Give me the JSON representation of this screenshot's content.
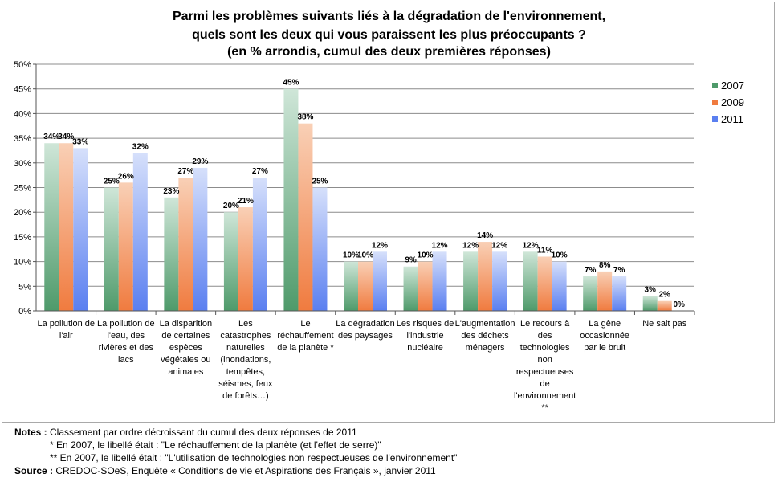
{
  "chart_data": {
    "type": "bar",
    "title": [
      "Parmi les problèmes suivants liés à la dégradation de l'environnement,",
      "quels sont les deux qui vous paraissent les plus préoccupants ?",
      "(en % arrondis, cumul des deux premières réponses)"
    ],
    "ylim": [
      0,
      50
    ],
    "yticks": [
      "0%",
      "5%",
      "10%",
      "15%",
      "20%",
      "25%",
      "30%",
      "35%",
      "40%",
      "45%",
      "50%"
    ],
    "grid": true,
    "legend_position": "right",
    "categories": [
      [
        "La pollution de",
        "l'air"
      ],
      [
        "La pollution de",
        "l'eau, des",
        "rivières et des",
        "lacs"
      ],
      [
        "La disparition",
        "de certaines",
        "espèces",
        "végétales ou",
        "animales"
      ],
      [
        "Les",
        "catastrophes",
        "naturelles",
        "(inondations,",
        "tempêtes,",
        "séismes, feux",
        "de forêts…)"
      ],
      [
        "Le",
        "réchauffement",
        "de la planète *"
      ],
      [
        "La dégradation",
        "des paysages"
      ],
      [
        "Les risques de",
        "l'industrie",
        "nucléaire"
      ],
      [
        "L'augmentation",
        "des déchets",
        "ménagers"
      ],
      [
        "Le recours à",
        "des",
        "technologies",
        "non",
        "respectueuses",
        "de",
        "l'environnement",
        "**"
      ],
      [
        "La gêne",
        "occasionnée",
        "par le bruit"
      ],
      [
        "Ne sait pas"
      ]
    ],
    "series": [
      {
        "name": "2007",
        "color": "#4e9a6a",
        "values": [
          34,
          25,
          23,
          20,
          45,
          10,
          9,
          12,
          12,
          7,
          3
        ]
      },
      {
        "name": "2009",
        "color": "#f07b3f",
        "values": [
          34,
          26,
          27,
          21,
          38,
          10,
          10,
          14,
          11,
          8,
          2
        ]
      },
      {
        "name": "2011",
        "color": "#5a7ff0",
        "values": [
          33,
          32,
          29,
          27,
          25,
          12,
          12,
          12,
          10,
          7,
          0
        ]
      }
    ],
    "data_labels": [
      [
        "34%",
        "25%",
        "23%",
        "20%",
        "45%",
        "10%",
        "9%",
        "12%",
        "12%",
        "7%",
        "3%"
      ],
      [
        "34%",
        "26%",
        "27%",
        "21%",
        "38%",
        "10%",
        "10%",
        "14%",
        "11%",
        "8%",
        "2%"
      ],
      [
        "33%",
        "32%",
        "29%",
        "27%",
        "25%",
        "12%",
        "12%",
        "12%",
        "10%",
        "7%",
        "0%"
      ]
    ]
  },
  "notes": {
    "notes_label": "Notes :",
    "notes_text": " Classement par ordre décroissant du cumul des deux réponses de 2011",
    "note1": "*  En 2007, le libellé était : \"Le réchauffement de la planète (et l'effet de serre)\"",
    "note2": "**  En 2007, le libellé était : \"L'utilisation de technologies non respectueuses de l'environnement\"",
    "source_label": "Source :",
    "source_text": " CREDOC-SOeS, Enquête « Conditions de vie et Aspirations des Français », janvier 2011"
  }
}
